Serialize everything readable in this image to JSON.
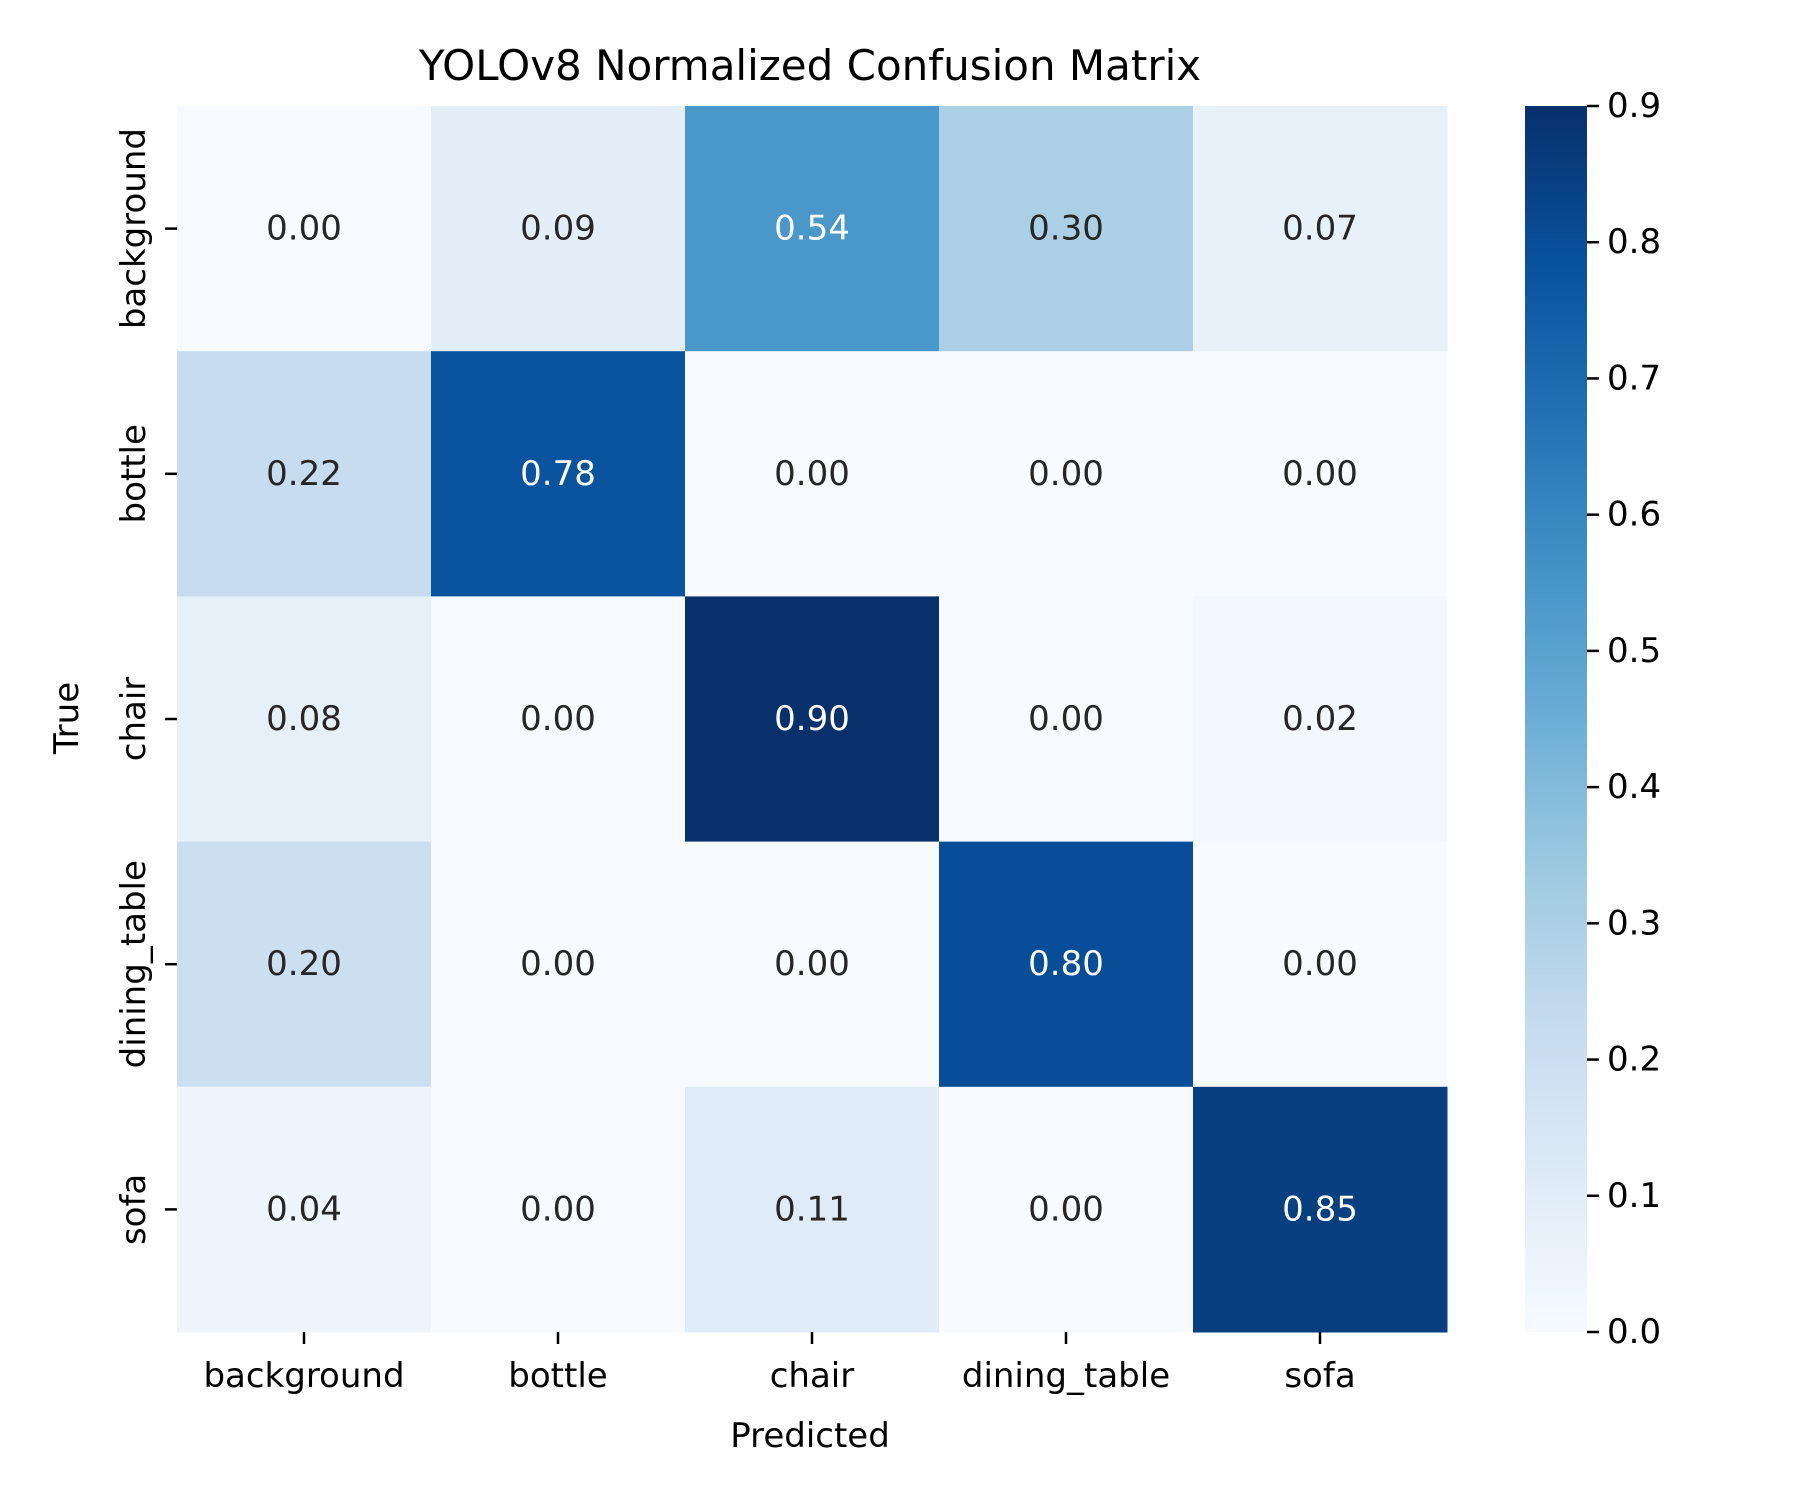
{
  "chart_data": {
    "type": "heatmap",
    "title": "YOLOv8 Normalized Confusion Matrix",
    "xlabel": "Predicted",
    "ylabel": "True",
    "x_categories": [
      "background",
      "bottle",
      "chair",
      "dining_table",
      "sofa"
    ],
    "y_categories": [
      "background",
      "bottle",
      "chair",
      "dining_table",
      "sofa"
    ],
    "values": [
      [
        0.0,
        0.09,
        0.54,
        0.3,
        0.07
      ],
      [
        0.22,
        0.78,
        0.0,
        0.0,
        0.0
      ],
      [
        0.08,
        0.0,
        0.9,
        0.0,
        0.02
      ],
      [
        0.2,
        0.0,
        0.0,
        0.8,
        0.0
      ],
      [
        0.04,
        0.0,
        0.11,
        0.0,
        0.85
      ]
    ],
    "value_format": "2 decimals",
    "colormap": "Blues",
    "colorbar": {
      "range": [
        0.0,
        0.9
      ],
      "ticks": [
        "0.0",
        "0.1",
        "0.2",
        "0.3",
        "0.4",
        "0.5",
        "0.6",
        "0.7",
        "0.8",
        "0.9"
      ]
    },
    "grid": false
  }
}
